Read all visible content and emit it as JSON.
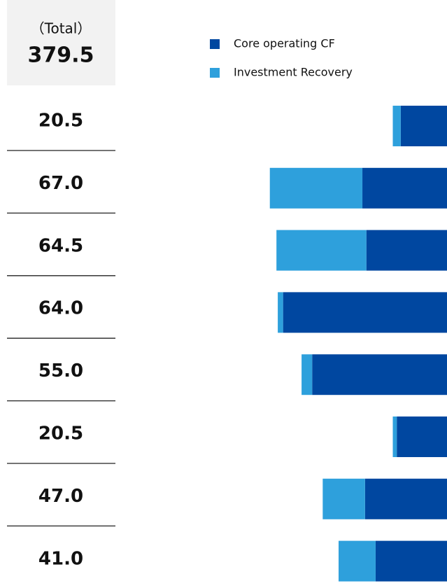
{
  "chart_data": {
    "type": "stacked-bar-horizontal",
    "total_caption": "（Total）",
    "grand_total_label": "379.5",
    "total_labels": [
      "20.5",
      "67.0",
      "64.5",
      "64.0",
      "55.0",
      "20.5",
      "47.0",
      "41.0"
    ],
    "series": [
      {
        "name": "Core operating CF",
        "color": "#0047a0",
        "values": [
          17.5,
          32.0,
          30.5,
          62.0,
          51.0,
          19.0,
          31.0,
          27.0
        ]
      },
      {
        "name": "Investment Recovery",
        "color": "#2ea0dc",
        "values": [
          3.0,
          35.0,
          34.0,
          2.0,
          4.0,
          1.5,
          16.0,
          14.0
        ]
      }
    ]
  }
}
